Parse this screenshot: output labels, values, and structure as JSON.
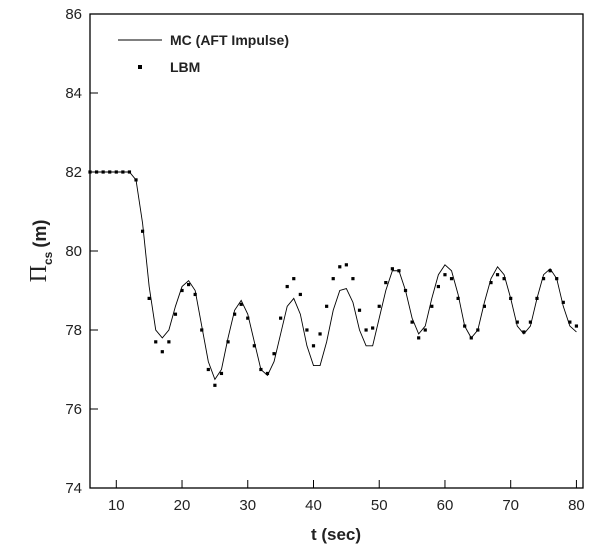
{
  "chart_data": {
    "type": "line",
    "x_label": "t (sec)",
    "y_label": {
      "symbol": "Π",
      "subscript": "cs",
      "unit": "(m)"
    },
    "x": [
      6,
      7,
      8,
      9,
      10,
      11,
      12,
      13,
      14,
      15,
      16,
      17,
      18,
      19,
      20,
      21,
      22,
      23,
      24,
      25,
      26,
      27,
      28,
      29,
      30,
      31,
      32,
      33,
      34,
      35,
      36,
      37,
      38,
      39,
      40,
      41,
      42,
      43,
      44,
      45,
      46,
      47,
      48,
      49,
      50,
      51,
      52,
      53,
      54,
      55,
      56,
      57,
      58,
      59,
      60,
      61,
      62,
      63,
      64,
      65,
      66,
      67,
      68,
      69,
      70,
      71,
      72,
      73,
      74,
      75,
      76,
      77,
      78,
      79,
      80
    ],
    "series": [
      {
        "name": "MC (AFT Impulse)",
        "color": "#000000",
        "style": "line",
        "values": [
          82,
          82,
          82,
          82,
          82,
          82,
          82,
          81.8,
          80.7,
          79.1,
          78.0,
          77.8,
          78.0,
          78.6,
          79.1,
          79.25,
          79.0,
          78.1,
          77.2,
          76.75,
          77.0,
          77.8,
          78.5,
          78.75,
          78.4,
          77.7,
          77.0,
          76.85,
          77.2,
          77.9,
          78.6,
          78.8,
          78.4,
          77.6,
          77.1,
          77.1,
          77.7,
          78.5,
          79.0,
          79.05,
          78.7,
          78.0,
          77.6,
          77.6,
          78.3,
          79.0,
          79.5,
          79.5,
          79.0,
          78.3,
          77.9,
          78.1,
          78.8,
          79.4,
          79.65,
          79.5,
          78.9,
          78.1,
          77.8,
          78.0,
          78.7,
          79.3,
          79.6,
          79.4,
          78.8,
          78.1,
          77.9,
          78.1,
          78.8,
          79.4,
          79.55,
          79.3,
          78.6,
          78.1,
          77.95
        ]
      },
      {
        "name": "LBM",
        "color": "#000000",
        "style": "markers",
        "values": [
          82,
          82,
          82,
          82,
          82,
          82,
          82,
          81.8,
          80.5,
          78.8,
          77.7,
          77.45,
          77.7,
          78.4,
          79.0,
          79.15,
          78.9,
          78.0,
          77.0,
          76.6,
          76.9,
          77.7,
          78.4,
          78.65,
          78.3,
          77.6,
          77.0,
          76.9,
          77.4,
          78.3,
          79.1,
          79.3,
          78.9,
          78.0,
          77.6,
          77.9,
          78.6,
          79.3,
          79.6,
          79.65,
          79.3,
          78.5,
          78.0,
          78.05,
          78.6,
          79.2,
          79.55,
          79.5,
          79.0,
          78.2,
          77.8,
          78.0,
          78.6,
          79.1,
          79.4,
          79.3,
          78.8,
          78.1,
          77.8,
          78.0,
          78.6,
          79.2,
          79.4,
          79.3,
          78.8,
          78.2,
          77.95,
          78.2,
          78.8,
          79.3,
          79.5,
          79.3,
          78.7,
          78.2,
          78.1
        ]
      }
    ],
    "xlim": [
      6,
      81
    ],
    "ylim": [
      74,
      86
    ],
    "xticks": [
      10,
      20,
      30,
      40,
      50,
      60,
      70,
      80
    ],
    "yticks": [
      74,
      76,
      78,
      80,
      82,
      84,
      86
    ],
    "legend": "upper-left"
  }
}
